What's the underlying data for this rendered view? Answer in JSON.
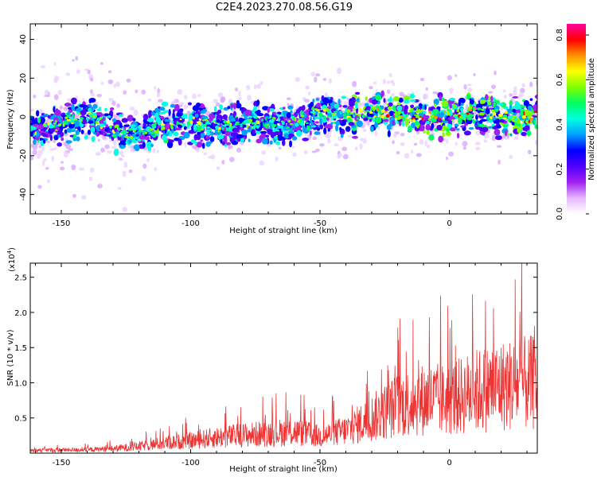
{
  "title": "C2E4.2023.270.08.56.G19",
  "chart_data": [
    {
      "type": "heatmap",
      "xlabel": "Height of straight line (km)",
      "ylabel": "Frequency (Hz)",
      "xlim": [
        -162,
        34
      ],
      "ylim": [
        -50,
        48
      ],
      "x_ticks": [
        -150,
        -100,
        -50,
        0
      ],
      "y_ticks": [
        -40,
        -20,
        0,
        20,
        40
      ],
      "x_tick_labels": [
        "-150",
        "-100",
        "-50",
        "0"
      ],
      "y_tick_labels": [
        "-40",
        "-20",
        "0",
        "20",
        "40"
      ],
      "ridge_frequency_hz": [
        [
          -160,
          -7
        ],
        [
          -150,
          -4
        ],
        [
          -140,
          0
        ],
        [
          -130,
          -7
        ],
        [
          -120,
          -10
        ],
        [
          -110,
          -4
        ],
        [
          -100,
          -3
        ],
        [
          -90,
          -5
        ],
        [
          -80,
          -2
        ],
        [
          -70,
          -4
        ],
        [
          -60,
          -3
        ],
        [
          -50,
          2
        ],
        [
          -40,
          1
        ],
        [
          -30,
          2
        ],
        [
          -20,
          2
        ],
        [
          -10,
          0
        ],
        [
          0,
          0
        ],
        [
          10,
          2
        ],
        [
          20,
          0
        ],
        [
          30,
          0
        ]
      ],
      "colorbar": {
        "label": "Normalized spectral amplitude",
        "range": [
          0.0,
          0.85
        ],
        "ticks": [
          0.0,
          0.2,
          0.4,
          0.6,
          0.8
        ],
        "tick_labels": [
          "0.0",
          "0.2",
          "0.4",
          "0.6",
          "0.8"
        ],
        "colors": [
          "#ffffff",
          "#e6b8ff",
          "#a020f0",
          "#5000ff",
          "#0000ff",
          "#00a0ff",
          "#00ffe0",
          "#00ff60",
          "#80ff00",
          "#ffff00",
          "#ff9000",
          "#ff0000",
          "#ff00a0"
        ]
      }
    },
    {
      "type": "line",
      "xlabel": "Height of straight line (km)",
      "ylabel": "SNR (10 * v/v)",
      "y_scale_label": "(x10",
      "y_scale_exp": "4",
      "y_scale_close": ")",
      "xlim": [
        -162,
        34
      ],
      "ylim": [
        0.0,
        2.7
      ],
      "x_ticks": [
        -150,
        -100,
        -50,
        0
      ],
      "y_ticks": [
        0.5,
        1.0,
        1.5,
        2.0,
        2.5
      ],
      "x_tick_labels": [
        "-150",
        "-100",
        "-50",
        "0"
      ],
      "y_tick_labels": [
        "0.5",
        "1.0",
        "1.5",
        "2.0",
        "2.5"
      ],
      "line_color": "#ee3333",
      "envelope": [
        [
          -162,
          0.05
        ],
        [
          -140,
          0.06
        ],
        [
          -130,
          0.08
        ],
        [
          -120,
          0.12
        ],
        [
          -110,
          0.18
        ],
        [
          -100,
          0.22
        ],
        [
          -90,
          0.28
        ],
        [
          -80,
          0.32
        ],
        [
          -70,
          0.35
        ],
        [
          -60,
          0.38
        ],
        [
          -50,
          0.3
        ],
        [
          -40,
          0.4
        ],
        [
          -30,
          0.62
        ],
        [
          -20,
          0.85
        ],
        [
          -10,
          0.95
        ],
        [
          0,
          0.95
        ],
        [
          10,
          1.1
        ],
        [
          20,
          1.2
        ],
        [
          34,
          1.25
        ]
      ]
    }
  ]
}
